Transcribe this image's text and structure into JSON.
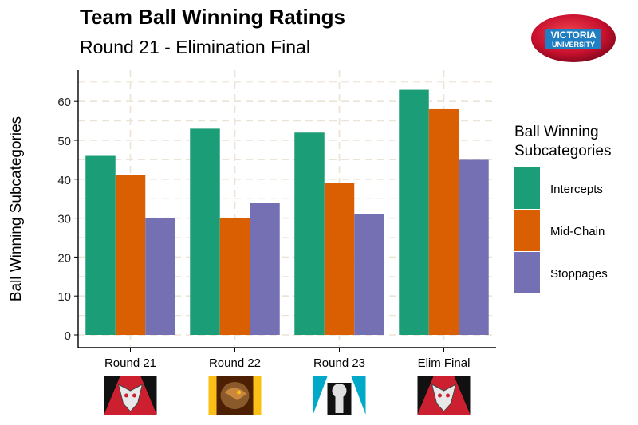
{
  "title": "Team Ball Winning Ratings",
  "subtitle": "Round 21 - Elimination Final",
  "logo": {
    "line1": "VICTORIA",
    "line2": "UNIVERSITY"
  },
  "legend": {
    "title_line1": "Ball Winning",
    "title_line2": "Subcategories",
    "placement": "right"
  },
  "team_logos": [
    "bombers-logo",
    "hawks-logo",
    "power-logo",
    "bombers-logo"
  ],
  "chart_data": {
    "type": "bar",
    "categories": [
      "Round 21",
      "Round 22",
      "Round 23",
      "Elim Final"
    ],
    "series": [
      {
        "name": "Intercepts",
        "color": "#1b9e77",
        "values": [
          46,
          53,
          52,
          63
        ]
      },
      {
        "name": "Mid-Chain",
        "color": "#d95f02",
        "values": [
          41,
          30,
          39,
          58
        ]
      },
      {
        "name": "Stoppages",
        "color": "#7570b3",
        "values": [
          30,
          34,
          31,
          45
        ]
      }
    ],
    "xlabel": "",
    "ylabel": "Ball Winning Subcategories",
    "ylim": [
      0,
      65
    ],
    "yticks": [
      0,
      10,
      20,
      30,
      40,
      50,
      60
    ],
    "grid": true
  }
}
